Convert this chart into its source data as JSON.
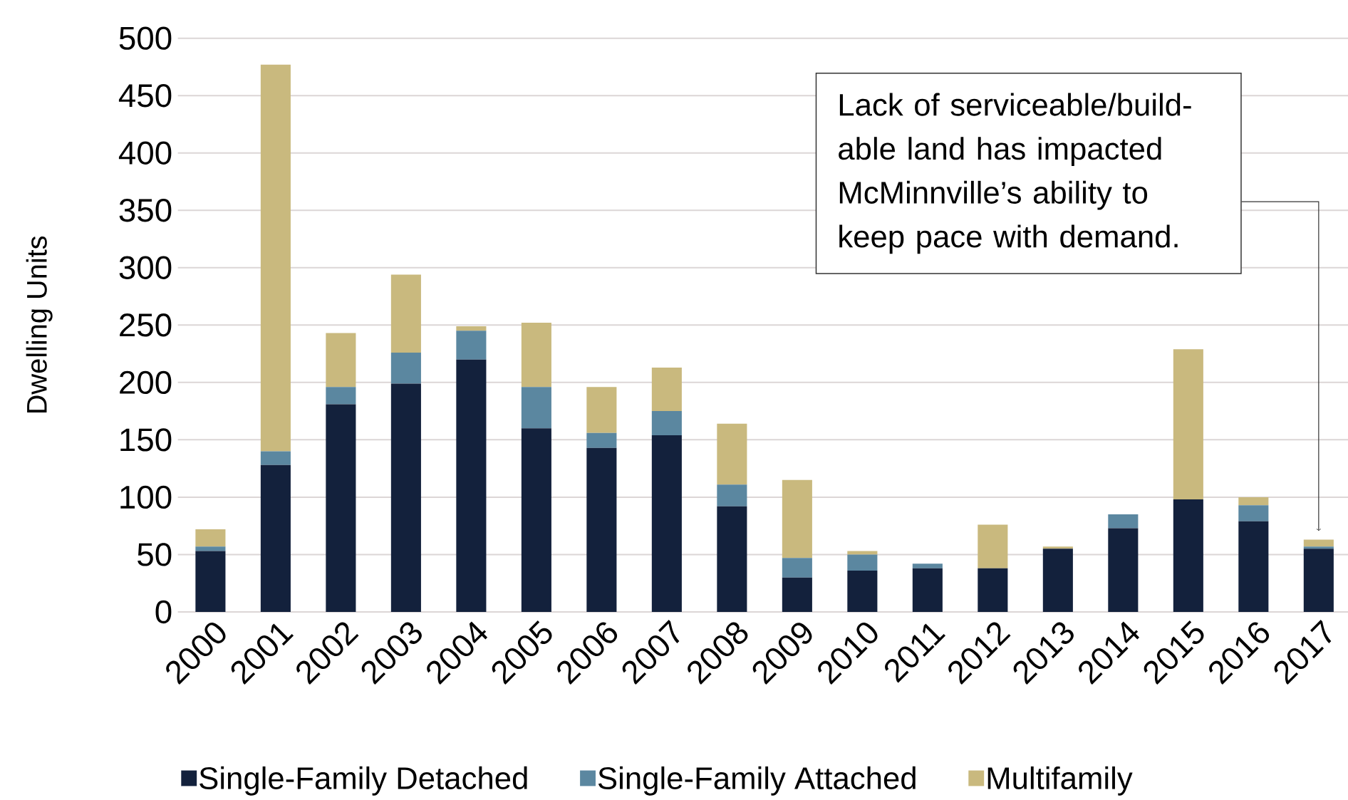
{
  "chart_data": {
    "type": "bar",
    "stacked": true,
    "ylabel": "Dwelling Units",
    "categories": [
      "2000",
      "2001",
      "2002",
      "2003",
      "2004",
      "2005",
      "2006",
      "2007",
      "2008",
      "2009",
      "2010",
      "2011",
      "2012",
      "2013",
      "2014",
      "2015",
      "2016",
      "2017"
    ],
    "series": [
      {
        "name": "Single-Family Detached",
        "color": "#13213c",
        "values": [
          53,
          128,
          181,
          199,
          220,
          160,
          143,
          154,
          92,
          30,
          36,
          38,
          38,
          55,
          73,
          98,
          79,
          55
        ]
      },
      {
        "name": "Single-Family Attached",
        "color": "#5b87a0",
        "values": [
          4,
          12,
          15,
          27,
          25,
          36,
          13,
          21,
          19,
          17,
          14,
          4,
          0,
          0,
          12,
          0,
          14,
          2
        ]
      },
      {
        "name": "Multifamily",
        "color": "#c9b97e",
        "values": [
          15,
          337,
          47,
          68,
          4,
          56,
          40,
          38,
          53,
          68,
          3,
          0,
          38,
          2,
          0,
          131,
          7,
          6
        ]
      }
    ],
    "ylim": [
      0,
      500
    ],
    "yticks": [
      0,
      50,
      100,
      150,
      200,
      250,
      300,
      350,
      400,
      450,
      500
    ],
    "grid": "y",
    "legend": "bottom",
    "annotations": [
      "Lack of serviceable/build-able land has impacted McMinnville’s ability to keep pace with demand."
    ]
  }
}
